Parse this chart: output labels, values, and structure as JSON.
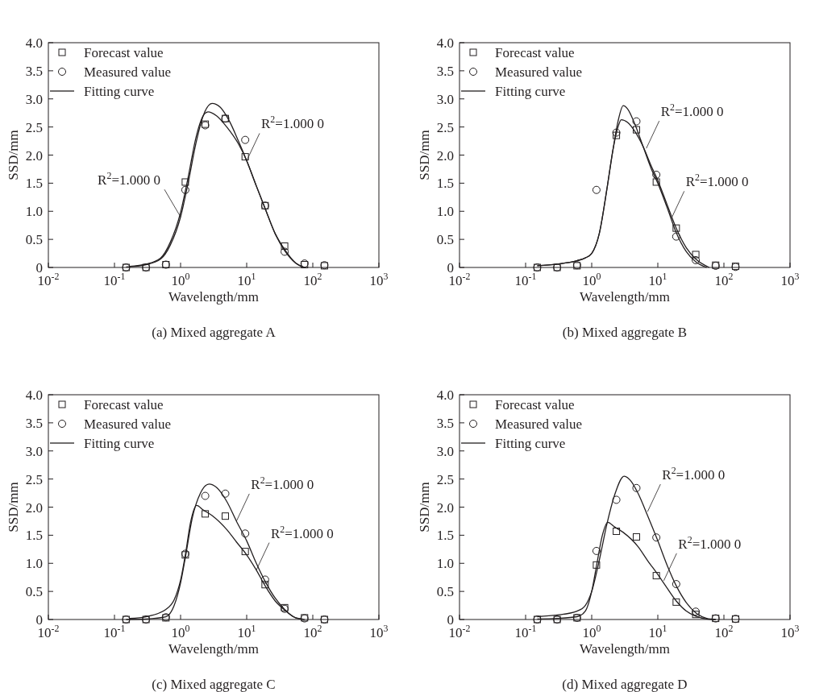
{
  "chart_data": [
    {
      "type": "scatter",
      "title": "(a) Mixed aggregate A",
      "xlabel": "Wavelength/mm",
      "ylabel": "SSD/mm",
      "log": "x",
      "legend": "top left",
      "xlim": [
        0.01,
        1000
      ],
      "xticks": [
        {
          "value": 0.01,
          "label": "10$^{-2}$"
        },
        {
          "value": 0.1,
          "label": "10$^{-1}$"
        },
        {
          "value": 1,
          "label": "10$^{0}$"
        },
        {
          "value": 10,
          "label": "10$^{1}$"
        },
        {
          "value": 100,
          "label": "10$^{2}$"
        },
        {
          "value": 1000,
          "label": "10$^{3}$"
        }
      ],
      "ylim": [
        0,
        4
      ],
      "yticks": [
        0,
        0.5,
        {
          "value": 1,
          "label": "1.0"
        },
        1.5,
        {
          "value": 2,
          "label": "2.0"
        },
        2.5,
        {
          "value": 3,
          "label": "3.0"
        },
        3.5,
        {
          "value": 4,
          "label": "4.0"
        }
      ],
      "x": [
        0.15,
        0.3,
        0.6,
        1.18,
        2.36,
        4.75,
        9.5,
        19,
        37.5,
        75,
        150
      ],
      "series": [
        {
          "name": "Forecast value",
          "marker": "square",
          "color": "#231f20",
          "values": [
            0,
            0,
            0.05,
            1.52,
            2.55,
            2.65,
            1.97,
            1.1,
            0.38,
            0.05,
            0.03
          ]
        },
        {
          "name": "Measured value",
          "marker": "circle",
          "color": "#231f20",
          "values": [
            0,
            0,
            0.05,
            1.38,
            2.53,
            2.65,
            2.27,
            1.1,
            0.28,
            0.07,
            0.04
          ]
        },
        {
          "name": "Fitting curve",
          "type": "line",
          "color": "#231f20",
          "x": [
            0.15,
            0.3,
            0.5,
            0.7,
            1.0,
            1.3,
            1.7,
            2.2,
            3,
            4,
            5.5,
            7.5,
            10,
            14,
            19,
            27,
            37.5,
            55,
            75
          ],
          "values": [
            0.01,
            0.05,
            0.15,
            0.4,
            0.9,
            1.5,
            2.2,
            2.7,
            2.92,
            2.85,
            2.6,
            2.25,
            1.9,
            1.45,
            1.05,
            0.6,
            0.3,
            0.08,
            0
          ]
        },
        {
          "type": "line",
          "color": "#231f20",
          "x": [
            0.17,
            0.3,
            0.5,
            0.7,
            1.0,
            1.3,
            1.7,
            2.2,
            2.6,
            3.5,
            5,
            7.5,
            10,
            14,
            19,
            27,
            37.5,
            55,
            70
          ],
          "values": [
            0.02,
            0.06,
            0.17,
            0.45,
            0.98,
            1.6,
            2.3,
            2.7,
            2.77,
            2.7,
            2.5,
            2.2,
            1.9,
            1.45,
            1.05,
            0.6,
            0.32,
            0.08,
            0.01
          ]
        }
      ],
      "annotations": [
        {
          "text": "R$^{2}$=1.000 0",
          "x": 10,
          "y": 1.9
        },
        {
          "text": "R$^{2}$=1.000 0",
          "x": 1.0,
          "y": 0.9
        }
      ]
    },
    {
      "type": "scatter",
      "title": "(b) Mixed aggregate B",
      "xlabel": "Wavelength/mm",
      "ylabel": "SSD/mm",
      "log": "x",
      "legend": "top left",
      "xlim": [
        0.01,
        1000
      ],
      "xticks": [
        {
          "value": 0.01,
          "label": "10$^{-2}$"
        },
        {
          "value": 0.1,
          "label": "10$^{-1}$"
        },
        {
          "value": 1,
          "label": "10$^{0}$"
        },
        {
          "value": 10,
          "label": "10$^{1}$"
        },
        {
          "value": 100,
          "label": "10$^{2}$"
        },
        {
          "value": 1000,
          "label": "10$^{3}$"
        }
      ],
      "ylim": [
        0,
        4
      ],
      "yticks": [
        0,
        0.5,
        {
          "value": 1,
          "label": "1.0"
        },
        1.5,
        {
          "value": 2,
          "label": "2.0"
        },
        2.5,
        {
          "value": 3,
          "label": "3.0"
        },
        3.5,
        {
          "value": 4,
          "label": "4.0"
        }
      ],
      "x": [
        0.15,
        0.3,
        0.6,
        1.18,
        2.36,
        4.75,
        9.5,
        19,
        37.5,
        75,
        150
      ],
      "series": [
        {
          "name": "Forecast value",
          "marker": "square",
          "color": "#231f20",
          "values": [
            0,
            0,
            0.03,
            null,
            2.35,
            2.45,
            1.52,
            0.7,
            0.23,
            0.04,
            0.02
          ]
        },
        {
          "name": "Measured value",
          "marker": "circle",
          "color": "#231f20",
          "values": [
            0,
            0,
            0.04,
            1.38,
            2.4,
            2.6,
            1.65,
            0.55,
            0.13,
            0.03,
            0.01
          ]
        },
        {
          "name": "Fitting curve",
          "type": "line",
          "color": "#231f20",
          "x": [
            0.15,
            0.3,
            0.6,
            0.8,
            1.0,
            1.3,
            1.7,
            2.1,
            2.5,
            3,
            3.5,
            4.5,
            6,
            8,
            10,
            14,
            19,
            27,
            37.5,
            55
          ],
          "values": [
            0.03,
            0.06,
            0.12,
            0.17,
            0.25,
            0.6,
            1.4,
            2.1,
            2.6,
            2.88,
            2.82,
            2.55,
            2.15,
            1.75,
            1.5,
            1.05,
            0.62,
            0.28,
            0.1,
            0
          ]
        },
        {
          "type": "line",
          "color": "#231f20",
          "x": [
            0.15,
            0.3,
            0.6,
            0.8,
            1.0,
            1.3,
            1.7,
            2.1,
            2.5,
            2.8,
            3.5,
            4.5,
            6,
            8,
            10,
            14,
            19,
            27,
            37.5,
            60
          ],
          "values": [
            0.03,
            0.06,
            0.12,
            0.17,
            0.25,
            0.6,
            1.4,
            2.1,
            2.5,
            2.63,
            2.58,
            2.42,
            2.15,
            1.8,
            1.55,
            1.1,
            0.7,
            0.35,
            0.15,
            0
          ]
        }
      ],
      "annotations": [
        {
          "text": "R$^{2}$=1.000 0",
          "x": 6.7,
          "y": 2.12
        },
        {
          "text": "R$^{2}$=1.000 0",
          "x": 16,
          "y": 0.87
        }
      ]
    },
    {
      "type": "scatter",
      "title": "(c) Mixed aggregate C",
      "xlabel": "Wavelength/mm",
      "ylabel": "SSD/mm",
      "log": "x",
      "legend": "top left",
      "xlim": [
        0.01,
        1000
      ],
      "xticks": [
        {
          "value": 0.01,
          "label": "10$^{-2}$"
        },
        {
          "value": 0.1,
          "label": "10$^{-1}$"
        },
        {
          "value": 1,
          "label": "10$^{0}$"
        },
        {
          "value": 10,
          "label": "10$^{1}$"
        },
        {
          "value": 100,
          "label": "10$^{2}$"
        },
        {
          "value": 1000,
          "label": "10$^{3}$"
        }
      ],
      "ylim": [
        0,
        4
      ],
      "yticks": [
        0,
        0.5,
        {
          "value": 1,
          "label": "1.0"
        },
        1.5,
        {
          "value": 2,
          "label": "2.0"
        },
        2.5,
        {
          "value": 3,
          "label": "3.0"
        },
        3.5,
        {
          "value": 4,
          "label": "4.0"
        }
      ],
      "x": [
        0.15,
        0.3,
        0.6,
        1.18,
        2.36,
        4.75,
        9.5,
        19,
        37.5,
        75,
        150
      ],
      "series": [
        {
          "name": "Forecast value",
          "marker": "square",
          "color": "#231f20",
          "values": [
            0,
            0,
            0.03,
            1.15,
            1.88,
            1.84,
            1.21,
            0.62,
            0.21,
            0.03,
            0
          ]
        },
        {
          "name": "Measured value",
          "marker": "circle",
          "color": "#231f20",
          "values": [
            0,
            0,
            0.04,
            1.17,
            2.2,
            2.24,
            1.53,
            0.71,
            0.19,
            0.02,
            0
          ]
        },
        {
          "name": "Fitting curve",
          "type": "line",
          "color": "#231f20",
          "x": [
            0.15,
            0.3,
            0.6,
            0.8,
            1.0,
            1.2,
            1.5,
            2.0,
            2.7,
            3.5,
            5,
            7,
            10,
            14,
            19,
            27,
            37.5,
            55,
            75
          ],
          "values": [
            0,
            0.01,
            0.05,
            0.25,
            0.65,
            1.15,
            1.8,
            2.25,
            2.41,
            2.35,
            2.1,
            1.75,
            1.4,
            1.0,
            0.68,
            0.38,
            0.18,
            0.03,
            0
          ]
        },
        {
          "type": "line",
          "color": "#231f20",
          "x": [
            0.17,
            0.3,
            0.6,
            0.8,
            1.0,
            1.2,
            1.4,
            1.75,
            2.2,
            3,
            5,
            7,
            10,
            14,
            19,
            27,
            37.5,
            55,
            70
          ],
          "values": [
            0.02,
            0.05,
            0.18,
            0.35,
            0.7,
            1.2,
            1.7,
            2.03,
            1.95,
            1.85,
            1.6,
            1.38,
            1.15,
            0.88,
            0.6,
            0.33,
            0.17,
            0.03,
            0.01
          ]
        }
      ],
      "annotations": [
        {
          "text": "R$^{2}$=1.000 0",
          "x": 7,
          "y": 1.75
        },
        {
          "text": "R$^{2}$=1.000 0",
          "x": 14,
          "y": 0.88
        }
      ]
    },
    {
      "type": "scatter",
      "title": "(d) Mixed aggregate D",
      "xlabel": "Wavelength/mm",
      "ylabel": "SSD/mm",
      "log": "x",
      "legend": "top left",
      "xlim": [
        0.01,
        1000
      ],
      "xticks": [
        {
          "value": 0.01,
          "label": "10$^{-2}$"
        },
        {
          "value": 0.1,
          "label": "10$^{-1}$"
        },
        {
          "value": 1,
          "label": "10$^{0}$"
        },
        {
          "value": 10,
          "label": "10$^{1}$"
        },
        {
          "value": 100,
          "label": "10$^{2}$"
        },
        {
          "value": 1000,
          "label": "10$^{3}$"
        }
      ],
      "ylim": [
        0,
        4
      ],
      "yticks": [
        0,
        0.5,
        {
          "value": 1,
          "label": "1.0"
        },
        1.5,
        {
          "value": 2,
          "label": "2.0"
        },
        2.5,
        {
          "value": 3,
          "label": "3.0"
        },
        3.5,
        {
          "value": 4,
          "label": "4.0"
        }
      ],
      "x": [
        0.15,
        0.3,
        0.6,
        1.18,
        2.36,
        4.75,
        9.5,
        19,
        37.5,
        75,
        150
      ],
      "series": [
        {
          "name": "Forecast value",
          "marker": "square",
          "color": "#231f20",
          "values": [
            0,
            0,
            0.03,
            0.97,
            1.57,
            1.47,
            0.78,
            0.31,
            0.09,
            0.02,
            0.01
          ]
        },
        {
          "name": "Measured value",
          "marker": "circle",
          "color": "#231f20",
          "values": [
            0,
            0,
            0.03,
            1.22,
            2.13,
            2.34,
            1.46,
            0.63,
            0.14,
            0.02,
            0.01
          ]
        },
        {
          "name": "Fitting curve",
          "type": "line",
          "color": "#231f20",
          "x": [
            0.15,
            0.3,
            0.6,
            0.8,
            1.0,
            1.3,
            1.7,
            2.2,
            3.1,
            4,
            5,
            7,
            10,
            14,
            19,
            27,
            37.5,
            55,
            75
          ],
          "values": [
            0.05,
            0.08,
            0.15,
            0.25,
            0.5,
            1.05,
            1.7,
            2.2,
            2.55,
            2.45,
            2.25,
            1.85,
            1.4,
            0.95,
            0.6,
            0.3,
            0.12,
            0.02,
            0
          ]
        },
        {
          "type": "line",
          "color": "#231f20",
          "x": [
            0.15,
            0.3,
            0.6,
            0.8,
            1.0,
            1.2,
            1.45,
            1.75,
            2.2,
            3,
            5,
            7,
            10,
            14,
            19,
            27,
            37.5,
            55,
            75
          ],
          "values": [
            0.01,
            0.02,
            0.05,
            0.15,
            0.5,
            1.0,
            1.5,
            1.73,
            1.65,
            1.55,
            1.3,
            1.05,
            0.8,
            0.55,
            0.33,
            0.15,
            0.06,
            0.01,
            0
          ]
        }
      ],
      "annotations": [
        {
          "text": "R$^{2}$=1.000 0",
          "x": 7,
          "y": 1.92
        },
        {
          "text": "R$^{2}$=1.000 0",
          "x": 12.3,
          "y": 0.69
        }
      ]
    }
  ]
}
